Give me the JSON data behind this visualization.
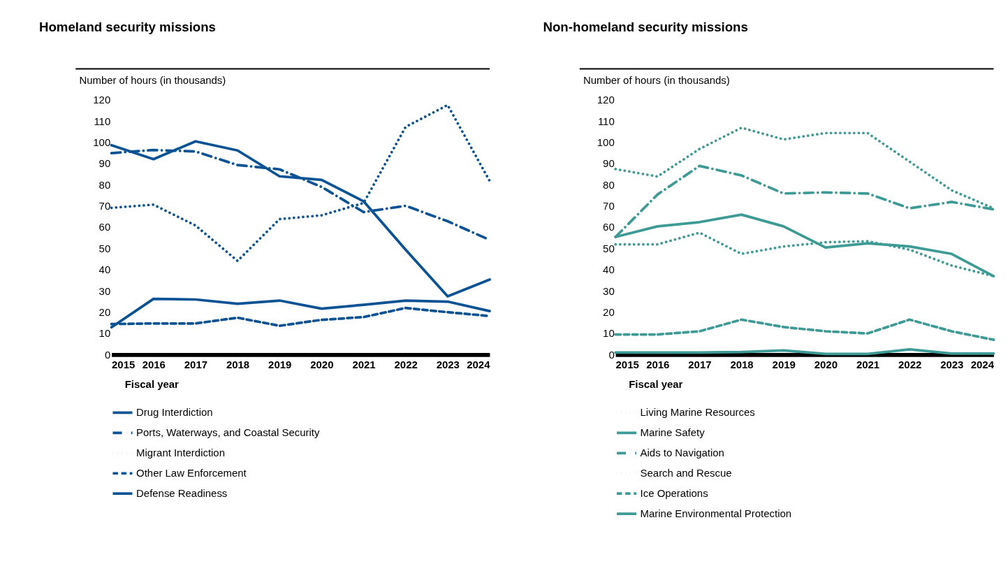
{
  "chart_data": [
    {
      "type": "line",
      "title": "Homeland security missions",
      "ylabel": "Number of hours (in thousands)",
      "xlabel": "Fiscal year",
      "x": [
        2015,
        2016,
        2017,
        2018,
        2019,
        2020,
        2021,
        2022,
        2023,
        2024
      ],
      "xlim": [
        2015,
        2024
      ],
      "xticks": [
        2015,
        2016,
        2017,
        2018,
        2019,
        2020,
        2021,
        2022,
        2023,
        2024
      ],
      "ylim": [
        0,
        120
      ],
      "yticks": [
        0,
        10,
        20,
        30,
        40,
        50,
        60,
        70,
        80,
        90,
        100,
        110,
        120
      ],
      "grid": false,
      "legend": "bottom",
      "marker": "none",
      "series": [
        {
          "name": "Drug Interdiction",
          "color": "#0a5294",
          "line_style": "solid",
          "values": [
            98.8,
            92.2,
            100.6,
            96.3,
            84.1,
            82.4,
            72.3,
            49.5,
            27.5,
            35.4
          ]
        },
        {
          "name": "Ports, Waterways, and Coastal Security",
          "color": "#0a5294",
          "line_style": "dashdot",
          "values": [
            95,
            96.5,
            95.8,
            89.4,
            87.4,
            79.1,
            67.2,
            70.2,
            62.9,
            54.1
          ]
        },
        {
          "name": "Migrant Interdiction",
          "color": "#0a5294",
          "line_style": "dotted",
          "values": [
            69.2,
            70.7,
            60.9,
            44.2,
            63.9,
            65.7,
            71.5,
            107.4,
            117.7,
            81.9
          ]
        },
        {
          "name": "Other Law Enforcement",
          "color": "#0a5294",
          "line_style": "dashed",
          "values": [
            14.4,
            14.7,
            14.7,
            17.4,
            13.6,
            16.4,
            17.7,
            22,
            20,
            18.2
          ]
        },
        {
          "name": "Defense Readiness",
          "color": "#0a5294",
          "line_style": "solid",
          "values": [
            12.9,
            26.3,
            26,
            24,
            25.5,
            21.7,
            23.5,
            25.5,
            25,
            20.5
          ]
        }
      ]
    },
    {
      "type": "line",
      "title": "Non-homeland security missions",
      "ylabel": "Number of hours (in thousands)",
      "xlabel": "Fiscal year",
      "x": [
        2015,
        2016,
        2017,
        2018,
        2019,
        2020,
        2021,
        2022,
        2023,
        2024
      ],
      "xlim": [
        2015,
        2024
      ],
      "xticks": [
        2015,
        2016,
        2017,
        2018,
        2019,
        2020,
        2021,
        2022,
        2023,
        2024
      ],
      "ylim": [
        0,
        120
      ],
      "yticks": [
        0,
        10,
        20,
        30,
        40,
        50,
        60,
        70,
        80,
        90,
        100,
        110,
        120
      ],
      "grid": false,
      "legend": "bottom",
      "marker": "none",
      "series": [
        {
          "name": "Living Marine Resources",
          "color": "#3e9a94",
          "line_style": "dotted",
          "values": [
            87.5,
            84,
            97,
            107,
            101.5,
            104.5,
            104.5,
            91,
            77.5,
            69
          ]
        },
        {
          "name": "Marine Safety",
          "color": "#3e9a94",
          "line_style": "solid",
          "values": [
            55.5,
            60.5,
            62.5,
            66,
            60.5,
            50.5,
            52.5,
            51,
            47.5,
            37
          ]
        },
        {
          "name": "Aids to Navigation",
          "color": "#3e9a94",
          "line_style": "dashdot",
          "values": [
            55.5,
            75.5,
            89,
            84.5,
            76,
            76.5,
            76,
            69,
            72,
            68.5
          ]
        },
        {
          "name": "Search and Rescue",
          "color": "#3e9a94",
          "line_style": "dotted",
          "values": [
            52,
            52,
            57.5,
            47.5,
            51,
            53,
            53.5,
            49.5,
            42,
            37
          ]
        },
        {
          "name": "Ice Operations",
          "color": "#3e9a94",
          "line_style": "dashed",
          "values": [
            9.5,
            9.5,
            11,
            16.5,
            13,
            11,
            10,
            16.5,
            11,
            7
          ]
        },
        {
          "name": "Marine Environmental Protection",
          "color": "#3e9a94",
          "line_style": "solid",
          "values": [
            1,
            1,
            1,
            1.2,
            2,
            0.3,
            0.3,
            2.5,
            0.5,
            0.5
          ]
        }
      ]
    }
  ]
}
